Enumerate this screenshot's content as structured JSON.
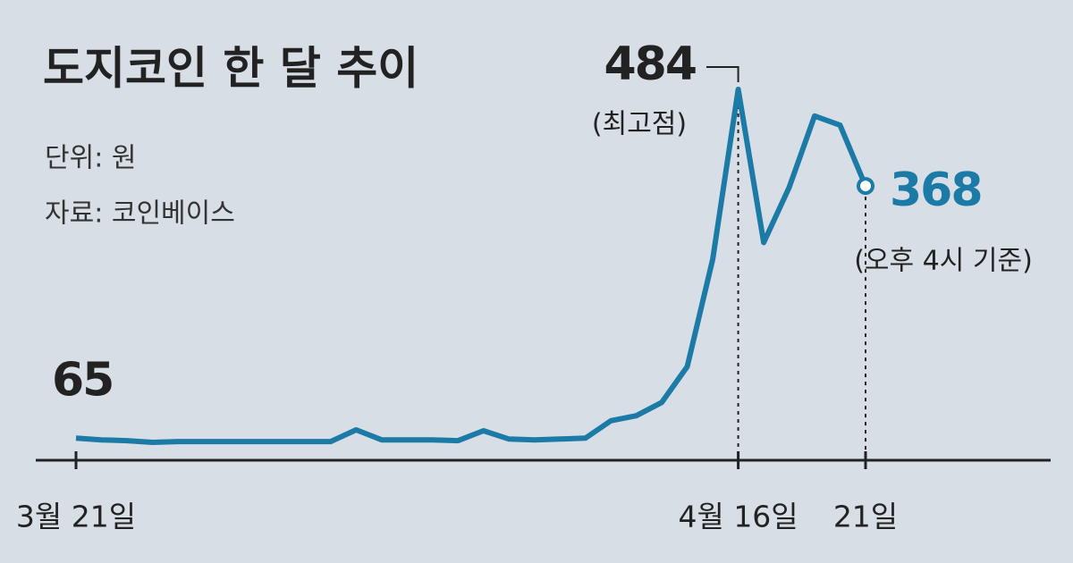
{
  "chart_data": {
    "type": "line",
    "title": "도지코인 한 달 추이",
    "subtitle": "단위: 원",
    "source": "자료: 코인베이스",
    "categories": [
      "3월 21일",
      null,
      null,
      null,
      null,
      null,
      null,
      null,
      null,
      null,
      null,
      null,
      null,
      null,
      null,
      null,
      null,
      null,
      null,
      null,
      null,
      null,
      null,
      null,
      null,
      null,
      "4월 16일",
      null,
      null,
      null,
      null,
      "21일"
    ],
    "series": [
      {
        "name": "도지코인",
        "color": "#1b7aa6",
        "values": [
          65,
          63,
          62,
          60,
          61,
          61,
          61,
          61,
          61,
          61,
          61,
          75,
          63,
          63,
          63,
          62,
          74,
          64,
          63,
          64,
          65,
          86,
          92,
          108,
          151,
          280,
          484,
          300,
          366,
          452,
          441,
          368
        ]
      }
    ],
    "annotations": [
      {
        "text": "(최고점)",
        "index": 26
      },
      {
        "text": "(오후 4시 기준)",
        "index": 31
      }
    ]
  }
}
